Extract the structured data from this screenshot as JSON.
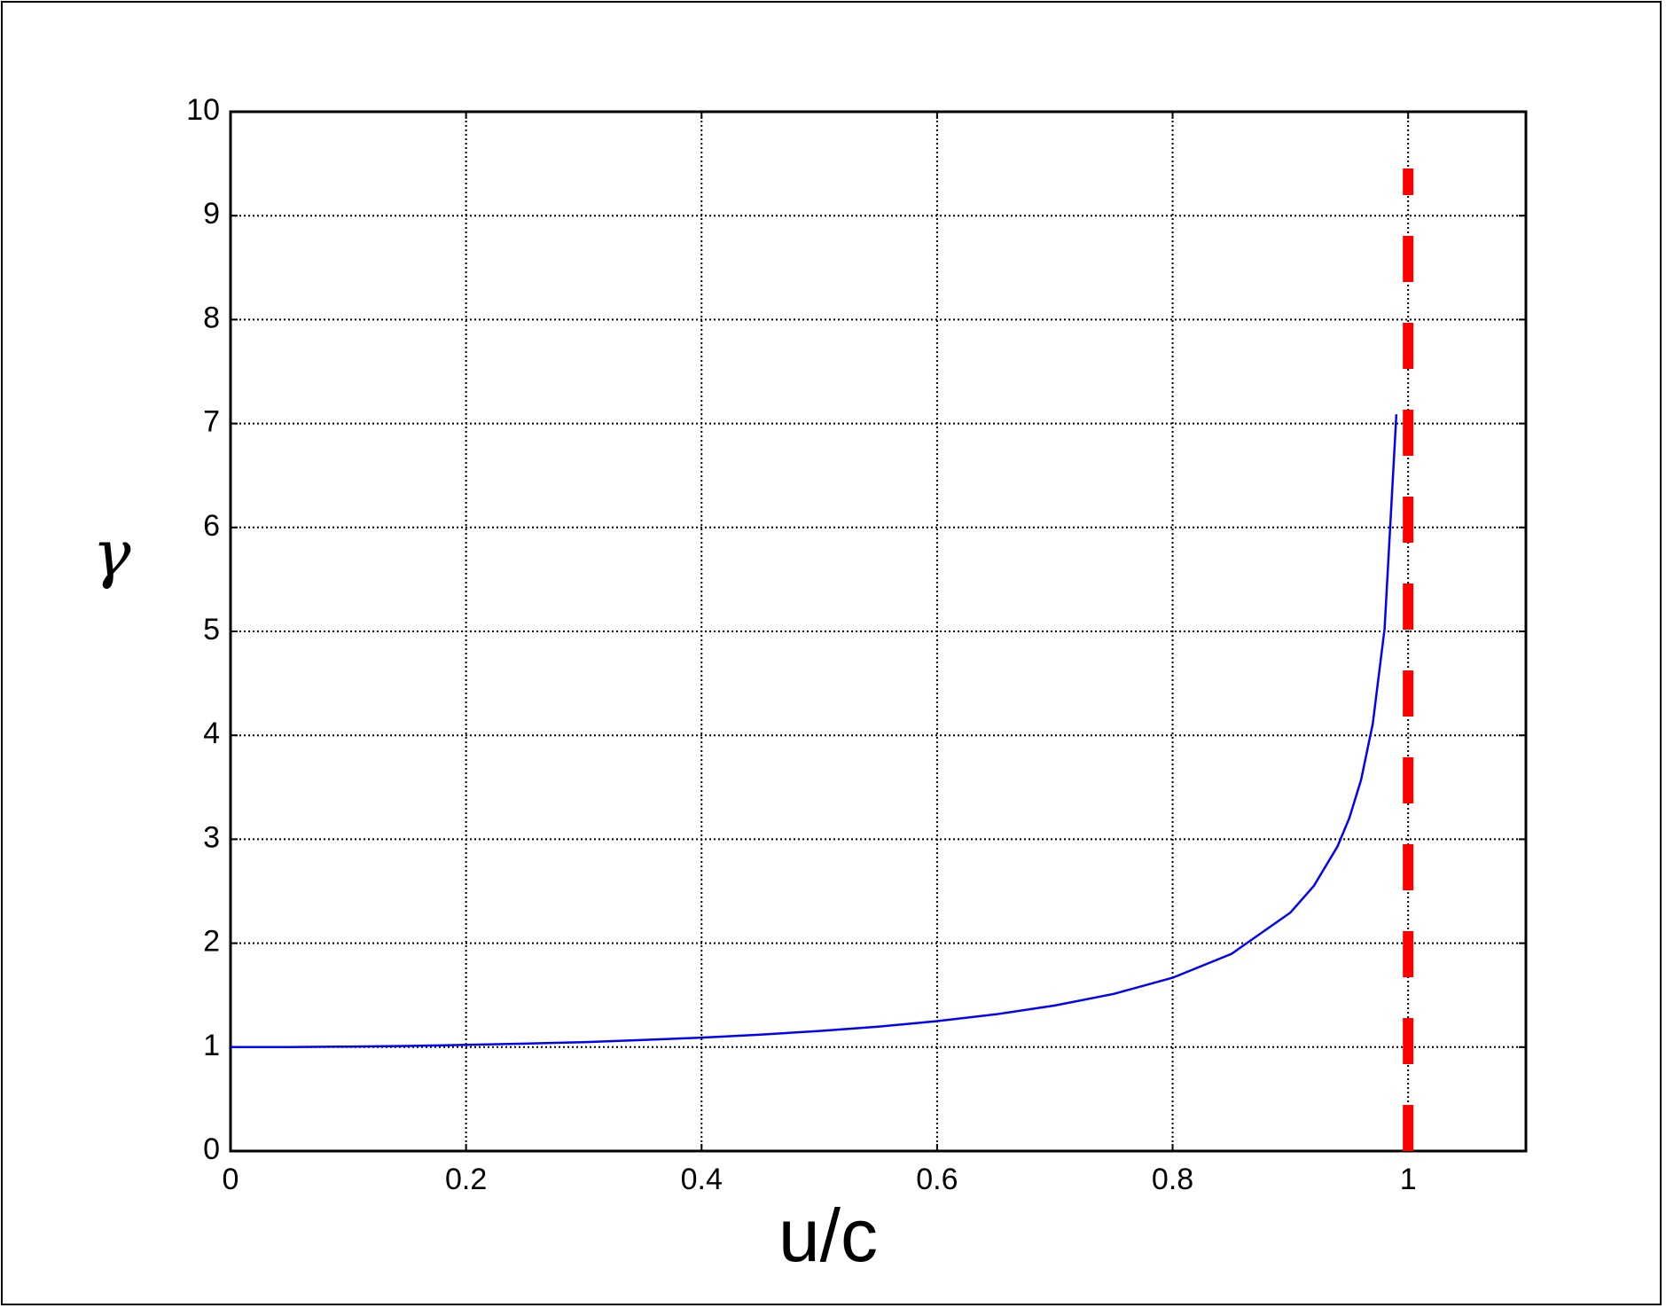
{
  "chart_data": {
    "type": "line",
    "x_label": "u/c",
    "y_label": "γ",
    "x": [
      0,
      0.05,
      0.1,
      0.15,
      0.2,
      0.25,
      0.3,
      0.35,
      0.4,
      0.45,
      0.5,
      0.55,
      0.6,
      0.65,
      0.7,
      0.75,
      0.8,
      0.85,
      0.9,
      0.92,
      0.94,
      0.95,
      0.96,
      0.97,
      0.98,
      0.99
    ],
    "series": [
      {
        "color": "#0000ff",
        "values": [
          1,
          1.001,
          1.005,
          1.011,
          1.021,
          1.033,
          1.048,
          1.068,
          1.091,
          1.12,
          1.155,
          1.197,
          1.25,
          1.316,
          1.4,
          1.512,
          1.667,
          1.898,
          2.294,
          2.552,
          2.931,
          3.203,
          3.571,
          4.113,
          5.025,
          7.089
        ]
      }
    ],
    "asymptote": {
      "x": 1,
      "color": "#ff0000"
    },
    "xlim": [
      0,
      1.1
    ],
    "xticks": [
      0,
      0.2,
      0.4,
      0.6,
      0.8,
      1
    ],
    "ylim": [
      0,
      10
    ],
    "yticks": [
      0,
      1,
      2,
      3,
      4,
      5,
      6,
      7,
      8,
      9,
      10
    ],
    "grid": true
  }
}
